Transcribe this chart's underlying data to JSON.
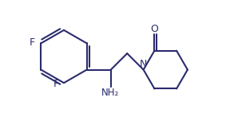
{
  "bg_color": "#ffffff",
  "line_color": "#2b2b6e",
  "line_width": 1.5,
  "font_size": 8.5,
  "font_color": "#2b2b6e",
  "figsize": [
    2.88,
    1.52
  ],
  "dpi": 100,
  "xlim": [
    0,
    10.5
  ],
  "ylim": [
    -0.5,
    5.5
  ]
}
